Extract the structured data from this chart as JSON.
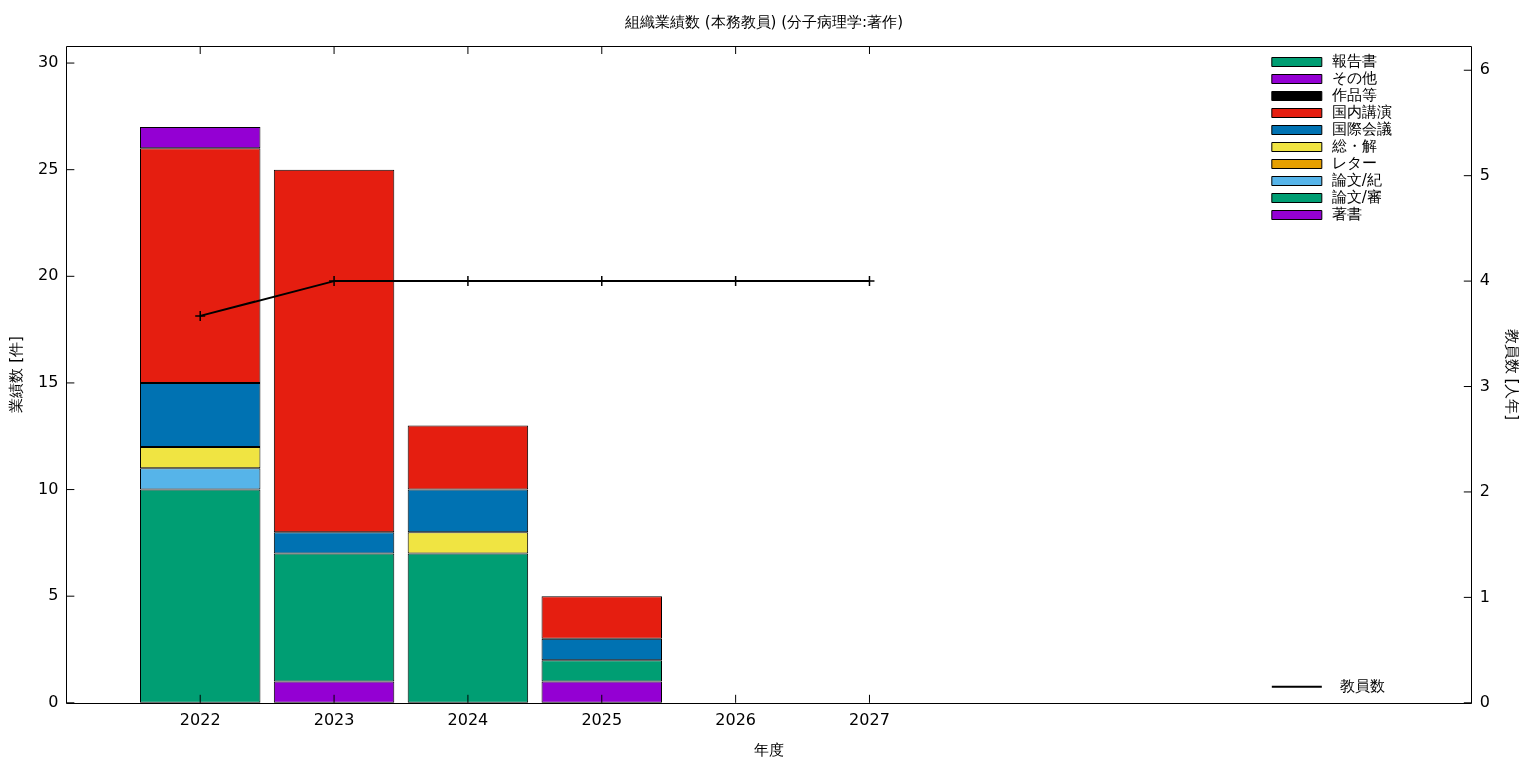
{
  "chart_data": {
    "type": "bar",
    "title": "組織業績数 (本務教員) (分子病理学:著作)",
    "xlabel": "年度",
    "ylabel": "業績数 [件]",
    "y2label": "教員数 [人年]",
    "x": [
      2022,
      2023,
      2024,
      2025,
      2026,
      2027
    ],
    "xlim": [
      2021,
      2031.5
    ],
    "xticks": [
      2022,
      2023,
      2024,
      2025,
      2026,
      2027
    ],
    "ylim": [
      0,
      30.8
    ],
    "yticks": [
      0,
      5,
      10,
      15,
      20,
      25,
      30
    ],
    "y2lim": [
      0,
      6.23
    ],
    "y2ticks": [
      0,
      1,
      2,
      3,
      4,
      5,
      6
    ],
    "stacked": true,
    "legend": "top right",
    "grid": false,
    "series": [
      {
        "name": "著書",
        "color": "#9400d3",
        "values": [
          0,
          1,
          0,
          1,
          0,
          0
        ]
      },
      {
        "name": "論文/審",
        "color": "#009e73",
        "values": [
          10,
          6,
          7,
          1,
          0,
          0
        ]
      },
      {
        "name": "論文/紀",
        "color": "#56b4e9",
        "values": [
          1,
          0,
          0,
          0,
          0,
          0
        ]
      },
      {
        "name": "レター",
        "color": "#e69f00",
        "values": [
          0,
          0,
          0,
          0,
          0,
          0
        ]
      },
      {
        "name": "総・解",
        "color": "#f0e442",
        "values": [
          1,
          0,
          1,
          0,
          0,
          0
        ]
      },
      {
        "name": "国際会議",
        "color": "#0072b2",
        "values": [
          3,
          1,
          2,
          1,
          0,
          0
        ]
      },
      {
        "name": "国内講演",
        "color": "#e51e10",
        "values": [
          11,
          17,
          3,
          2,
          0,
          0
        ]
      },
      {
        "name": "作品等",
        "color": "#000000",
        "values": [
          0,
          0,
          0,
          0,
          0,
          0
        ]
      },
      {
        "name": "その他",
        "color": "#9400d3",
        "values": [
          1,
          0,
          0,
          0,
          0,
          0
        ]
      },
      {
        "name": "報告書",
        "color": "#009e73",
        "values": [
          0,
          0,
          0,
          0,
          0,
          0
        ]
      },
      {
        "name": "教員数",
        "color": "#000000",
        "type": "line",
        "axis": "y2",
        "marker": "cross",
        "values": [
          3.67,
          4,
          4,
          4,
          4,
          4
        ]
      }
    ]
  }
}
